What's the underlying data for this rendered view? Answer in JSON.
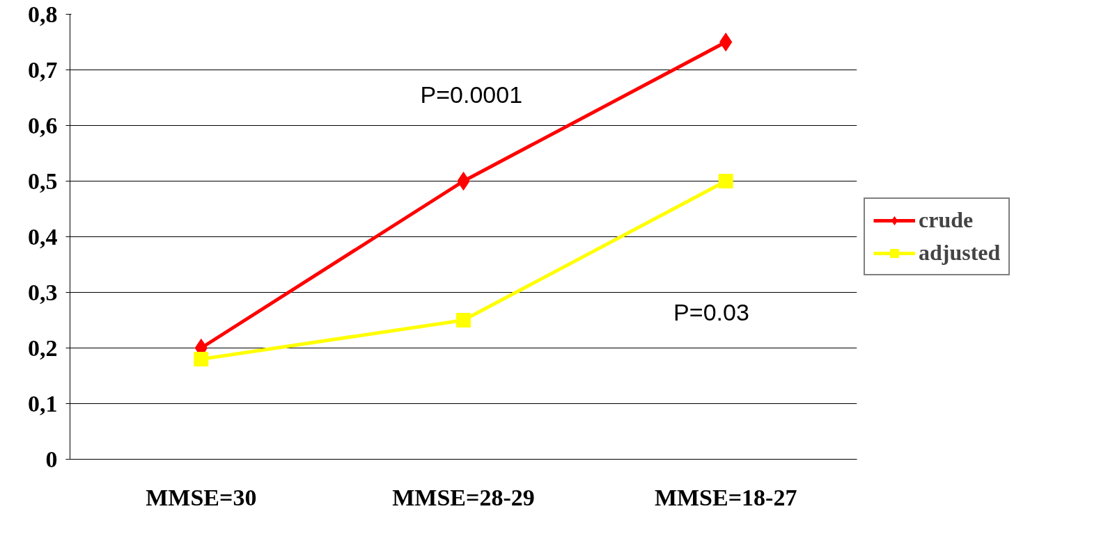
{
  "chart_data": {
    "type": "line",
    "categories": [
      "MMSE=30",
      "MMSE=28-29",
      "MMSE=18-27"
    ],
    "series": [
      {
        "name": "crude",
        "color": "#ff0000",
        "marker": "diamond",
        "values": [
          0.2,
          0.5,
          0.75
        ]
      },
      {
        "name": "adjusted",
        "color": "#ffff00",
        "marker": "square",
        "values": [
          0.18,
          0.25,
          0.5
        ]
      }
    ],
    "ylim": [
      0,
      0.8
    ],
    "yticks": [
      0,
      {
        "value": 0.1,
        "label": "0,1"
      },
      {
        "value": 0.2,
        "label": "0,2"
      },
      {
        "value": 0.3,
        "label": "0,3"
      },
      {
        "value": 0.4,
        "label": "0,4"
      },
      {
        "value": 0.5,
        "label": "0,5"
      },
      {
        "value": 0.6,
        "label": "0,6"
      },
      {
        "value": 0.7,
        "label": "0,7"
      },
      {
        "value": 0.8,
        "label": "0,8"
      }
    ],
    "grid": "y",
    "legend": "right",
    "line_style": "solid",
    "annotations": [
      "P=0.0001",
      "P=0.03"
    ]
  }
}
